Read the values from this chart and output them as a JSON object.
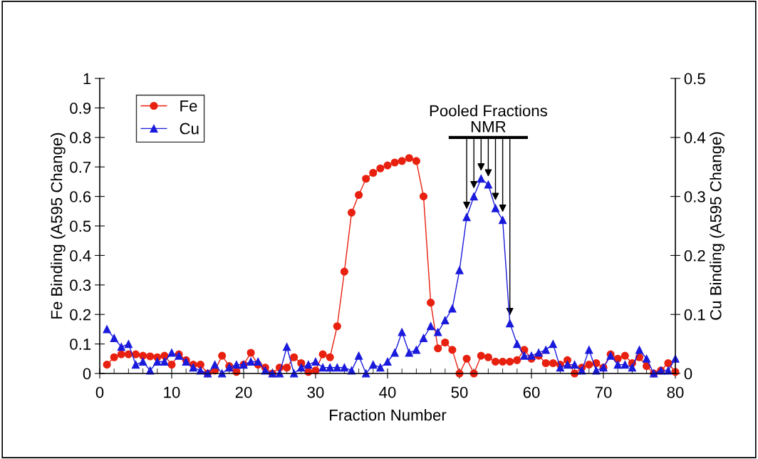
{
  "chart_data": {
    "type": "line",
    "xlabel": "Fraction Number",
    "ylabel": "Fe Binding (A595 Change)",
    "y2label": "Cu Binding (A595 Change)",
    "x": [
      1,
      2,
      3,
      4,
      5,
      6,
      7,
      8,
      9,
      10,
      11,
      12,
      13,
      14,
      15,
      16,
      17,
      18,
      19,
      20,
      21,
      22,
      23,
      24,
      25,
      26,
      27,
      28,
      29,
      30,
      31,
      32,
      33,
      34,
      35,
      36,
      37,
      38,
      39,
      40,
      41,
      42,
      43,
      44,
      45,
      46,
      47,
      48,
      49,
      50,
      51,
      52,
      53,
      54,
      55,
      56,
      57,
      58,
      59,
      60,
      61,
      62,
      63,
      64,
      65,
      66,
      67,
      68,
      69,
      70,
      71,
      72,
      73,
      74,
      75,
      76,
      77,
      78,
      79,
      80
    ],
    "series": [
      {
        "name": "Fe",
        "color": "#e8200f",
        "marker": "circle",
        "values": [
          0.03,
          0.055,
          0.065,
          0.065,
          0.065,
          0.06,
          0.058,
          0.055,
          0.06,
          0.03,
          0.065,
          0.045,
          0.03,
          0.03,
          0.0,
          0.01,
          0.06,
          0.025,
          0.005,
          0.03,
          0.07,
          0.03,
          0.02,
          0.0,
          0.02,
          0.02,
          0.055,
          0.035,
          0.005,
          0.01,
          0.065,
          0.055,
          0.16,
          0.345,
          0.545,
          0.605,
          0.66,
          0.68,
          0.695,
          0.705,
          0.715,
          0.72,
          0.73,
          0.72,
          0.6,
          0.24,
          0.085,
          0.105,
          0.08,
          0.0,
          0.05,
          0.0,
          0.06,
          0.055,
          0.04,
          0.04,
          0.04,
          0.045,
          0.08,
          0.05,
          0.06,
          0.035,
          0.035,
          0.03,
          0.045,
          0.0,
          0.02,
          0.03,
          0.035,
          0.02,
          0.065,
          0.05,
          0.06,
          0.035,
          0.055,
          0.025,
          0.0,
          0.01,
          0.035,
          0.005
        ]
      },
      {
        "name": "Cu",
        "color": "#1a1adc",
        "marker": "triangle",
        "axis": "y2",
        "values": [
          0.075,
          0.06,
          0.045,
          0.05,
          0.015,
          0.02,
          0.005,
          0.02,
          0.02,
          0.035,
          0.03,
          0.02,
          0.01,
          0.005,
          0.0,
          0.015,
          0.0,
          0.01,
          0.015,
          0.015,
          0.02,
          0.02,
          0.005,
          0.0,
          0.0,
          0.045,
          0.0,
          0.01,
          0.015,
          0.02,
          0.01,
          0.01,
          0.01,
          0.01,
          0.005,
          0.03,
          0.0,
          0.015,
          0.01,
          0.02,
          0.035,
          0.07,
          0.035,
          0.04,
          0.06,
          0.08,
          0.07,
          0.09,
          0.11,
          0.175,
          0.265,
          0.3,
          0.33,
          0.32,
          0.28,
          0.26,
          0.085,
          0.05,
          0.03,
          0.03,
          0.035,
          0.04,
          0.05,
          0.01,
          0.015,
          0.015,
          0.005,
          0.04,
          0.005,
          0.01,
          0.03,
          0.015,
          0.015,
          0.01,
          0.04,
          0.025,
          0.0,
          0.005,
          0.005,
          0.025
        ]
      }
    ],
    "xlim": [
      0,
      80
    ],
    "xticks": [
      0,
      10,
      20,
      30,
      40,
      50,
      60,
      70,
      80
    ],
    "ylim": [
      0,
      1
    ],
    "yticks": [
      0,
      0.1,
      0.2,
      0.3,
      0.4,
      0.5,
      0.6,
      0.7,
      0.8,
      0.9,
      1
    ],
    "y2lim": [
      0,
      0.5
    ],
    "y2ticks": [
      0,
      0.1,
      0.2,
      0.3,
      0.4,
      0.5
    ],
    "annotations": [
      {
        "text": "Pooled Fractions\nNMR",
        "x": 53,
        "y": 0.66
      }
    ],
    "legend": "top left",
    "grid": false
  }
}
